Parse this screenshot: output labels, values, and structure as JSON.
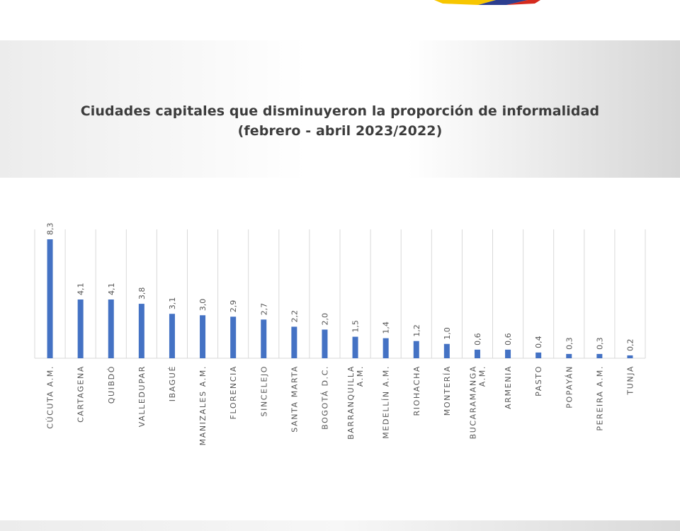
{
  "colors": {
    "bar": "#4472c4",
    "grid": "#d9d9d9",
    "title": "#3c3c3c",
    "flag_yellow": "#f7c600",
    "flag_blue": "#2c3e8f",
    "flag_red": "#d52b1e"
  },
  "chart_data": {
    "type": "bar",
    "title": "Ciudades capitales que disminuyeron la proporción de informalidad",
    "subtitle": "(febrero - abril 2023/2022)",
    "categories": [
      "CÚCUTA A.M.",
      "CARTAGENA",
      "QUIBDÓ",
      "VALLEDUPAR",
      "IBAGUÉ",
      "MANIZALES A.M.",
      "FLORENCIA",
      "SINCELEJO",
      "SANTA MARTA",
      "BOGOTÁ D.C.",
      "BARRANQUILLA A.M.",
      "MEDELLÍN A.M.",
      "RIOHACHA",
      "MONTERÍA",
      "BUCARAMANGA A.M.",
      "ARMENIA",
      "PASTO",
      "POPAYÁN",
      "PEREIRA A.M.",
      "TUNJA"
    ],
    "values": [
      8.3,
      4.1,
      4.1,
      3.8,
      3.1,
      3.0,
      2.9,
      2.7,
      2.2,
      2.0,
      1.5,
      1.4,
      1.2,
      1.0,
      0.6,
      0.6,
      0.4,
      0.3,
      0.3,
      0.2
    ],
    "value_labels": [
      "8,3",
      "4,1",
      "4,1",
      "3,8",
      "3,1",
      "3,0",
      "2,9",
      "2,7",
      "2,2",
      "2,0",
      "1,5",
      "1,4",
      "1,2",
      "1,0",
      "0,6",
      "0,6",
      "0,4",
      "0,3",
      "0,3",
      "0,2"
    ],
    "category_lines": [
      [
        "CÚCUTA A.M."
      ],
      [
        "CARTAGENA"
      ],
      [
        "QUIBDÓ"
      ],
      [
        "VALLEDUPAR"
      ],
      [
        "IBAGUÉ"
      ],
      [
        "MANIZALES A.M."
      ],
      [
        "FLORENCIA"
      ],
      [
        "SINCELEJO"
      ],
      [
        "SANTA MARTA"
      ],
      [
        "BOGOTÁ D.C."
      ],
      [
        "BARRANQUILLA",
        "A.M."
      ],
      [
        "MEDELLÍN A.M."
      ],
      [
        "RIOHACHA"
      ],
      [
        "MONTERÍA"
      ],
      [
        "BUCARAMANGA",
        "A.M."
      ],
      [
        "ARMENIA"
      ],
      [
        "PASTO"
      ],
      [
        "POPAYÁN"
      ],
      [
        "PEREIRA A.M."
      ],
      [
        "TUNJA"
      ]
    ],
    "xlabel": "",
    "ylabel": "",
    "ylim": [
      0,
      9
    ],
    "grid": true,
    "legend": "none"
  }
}
